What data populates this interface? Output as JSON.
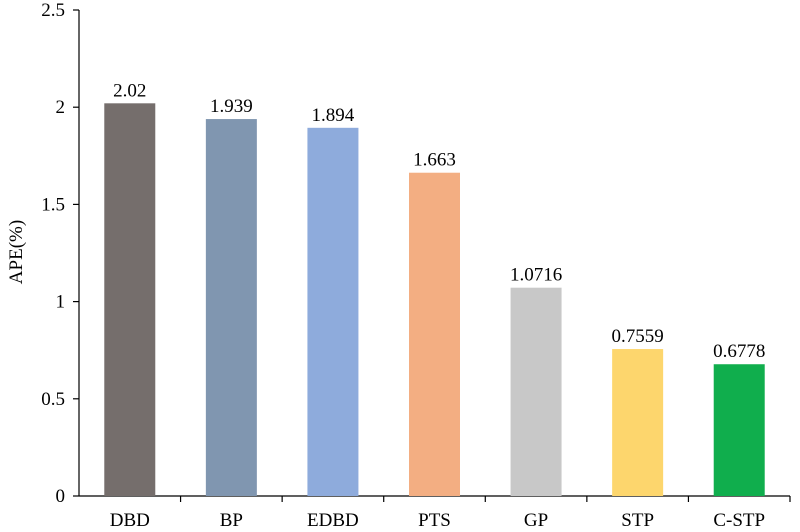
{
  "chart_data": {
    "type": "bar",
    "title": "",
    "xlabel": "",
    "ylabel": "APE(%)",
    "ylim": [
      0,
      2.5
    ],
    "yticks": [
      "0",
      "0.5",
      "1",
      "1.5",
      "2",
      "2.5"
    ],
    "ytick_values": [
      0,
      0.5,
      1,
      1.5,
      2,
      2.5
    ],
    "grid": false,
    "categories": [
      "DBD",
      "BP",
      "EDBD",
      "PTS",
      "GP",
      "STP",
      "C-STP"
    ],
    "values": [
      2.02,
      1.939,
      1.894,
      1.663,
      1.0716,
      0.7559,
      0.6778
    ],
    "value_labels": [
      "2.02",
      "1.939",
      "1.894",
      "1.663",
      "1.0716",
      "0.7559",
      "0.6778"
    ],
    "colors": [
      "#756e6c",
      "#8096b0",
      "#8eabdc",
      "#f3ae82",
      "#c8c8c8",
      "#fdd66d",
      "#10ae4d"
    ]
  }
}
